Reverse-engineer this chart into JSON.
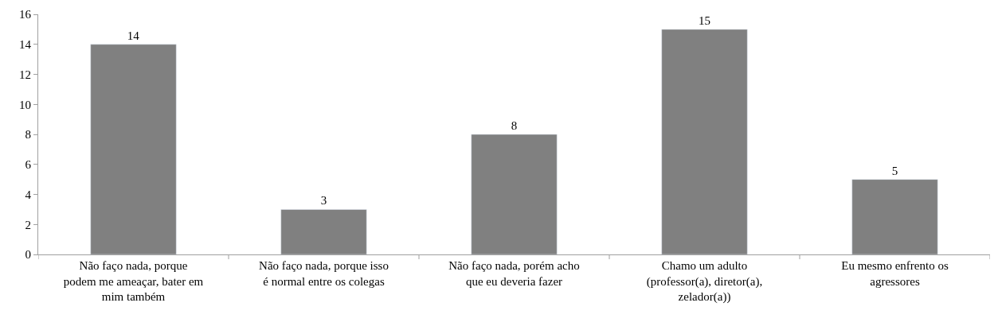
{
  "chart_data": {
    "type": "bar",
    "categories": [
      "Não faço nada, porque podem me ameaçar, bater em mim também",
      "Não faço nada, porque isso é normal entre os colegas",
      "Não faço nada, porém acho que eu deveria fazer",
      "Chamo um adulto (professor(a), diretor(a), zelador(a))",
      "Eu mesmo enfrento os agressores"
    ],
    "values": [
      14,
      3,
      8,
      15,
      5
    ],
    "color": "#808080",
    "ylim": [
      0,
      16
    ],
    "yticks": [
      0,
      2,
      4,
      6,
      8,
      10,
      12,
      14,
      16
    ],
    "data_labels": true
  }
}
